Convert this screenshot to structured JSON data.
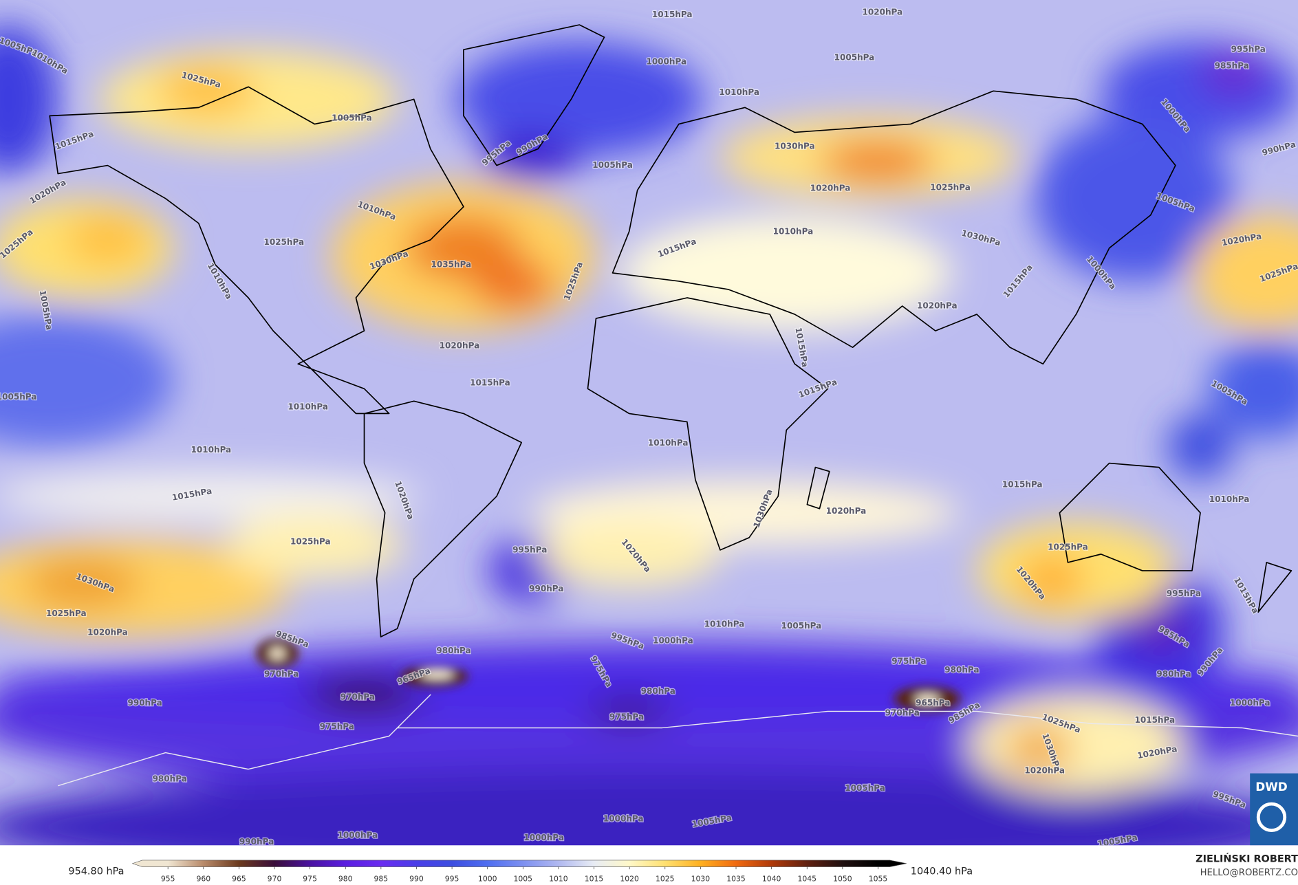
{
  "isobar_labels": [
    "1015hPa",
    "1020hPa",
    "1005hPa",
    "1010hPa",
    "1025hPa",
    "1005hPa",
    "1000hPa",
    "1005hPa",
    "995hPa",
    "985hPa",
    "1010hPa",
    "995hPa",
    "990hPa",
    "1005hPa",
    "1030hPa",
    "1020hPa",
    "1025hPa",
    "1000hPa",
    "990hPa",
    "1015hPa",
    "1020hPa",
    "1025hPa",
    "1010hPa",
    "1025hPa",
    "1030hPa",
    "1035hPa",
    "1025hPa",
    "1010hPa",
    "1005hPa",
    "1015hPa",
    "1010hPa",
    "1030hPa",
    "1020hPa",
    "1015hPa",
    "1005hPa",
    "1020hPa",
    "1025hPa",
    "1000hPa",
    "1020hPa",
    "1015hPa",
    "1010hPa",
    "1015hPa",
    "1015hPa",
    "1005hPa",
    "1005hPa",
    "1010hPa",
    "1010hPa",
    "1015hPa",
    "1015hPa",
    "1020hPa",
    "1010hPa",
    "1020hPa",
    "1025hPa",
    "1020hPa",
    "1030hPa",
    "995hPa",
    "990hPa",
    "1030hPa",
    "1025hPa",
    "1020hPa",
    "1025hPa",
    "1020hPa",
    "1015hPa",
    "995hPa",
    "1010hPa",
    "1005hPa",
    "995hPa",
    "1000hPa",
    "985hPa",
    "980hPa",
    "970hPa",
    "965hPa",
    "970hPa",
    "975hPa",
    "980hPa",
    "975hPa",
    "980hPa",
    "975hPa",
    "965hPa",
    "970hPa",
    "985hPa",
    "990hPa",
    "975hPa",
    "985hPa",
    "980hPa",
    "990hPa",
    "1000hPa",
    "1025hPa",
    "1015hPa",
    "1030hPa",
    "1020hPa",
    "1020hPa",
    "980hPa",
    "1005hPa",
    "995hPa",
    "1000hPa",
    "1005hPa",
    "1000hPa",
    "1000hPa",
    "990hPa",
    "1005hPa"
  ],
  "colorbar": {
    "min_label": "954.80 hPa",
    "max_label": "1040.40 hPa",
    "lim": [
      950,
      1059
    ],
    "ticks": [
      955,
      960,
      965,
      970,
      975,
      980,
      985,
      990,
      995,
      1000,
      1005,
      1010,
      1015,
      1020,
      1025,
      1030,
      1035,
      1040,
      1045,
      1050,
      1055
    ],
    "colors": [
      "#f0e6d2",
      "#b88a6a",
      "#6b3a1e",
      "#3a0e3a",
      "#4a12a0",
      "#5a1ee0",
      "#6a2cf0",
      "#4a3ee8",
      "#3d4ee0",
      "#4f6ef0",
      "#7d90f0",
      "#b0b8f0",
      "#e8ecf4",
      "#fff8c8",
      "#ffe070",
      "#ffb020",
      "#f06a10",
      "#b03a0a",
      "#602010",
      "#201010",
      "#000000"
    ]
  },
  "logo": "DWD",
  "author": "ZIELIŃSKI ROBERT",
  "contact": "HELLO@ROBERTZ.CO"
}
